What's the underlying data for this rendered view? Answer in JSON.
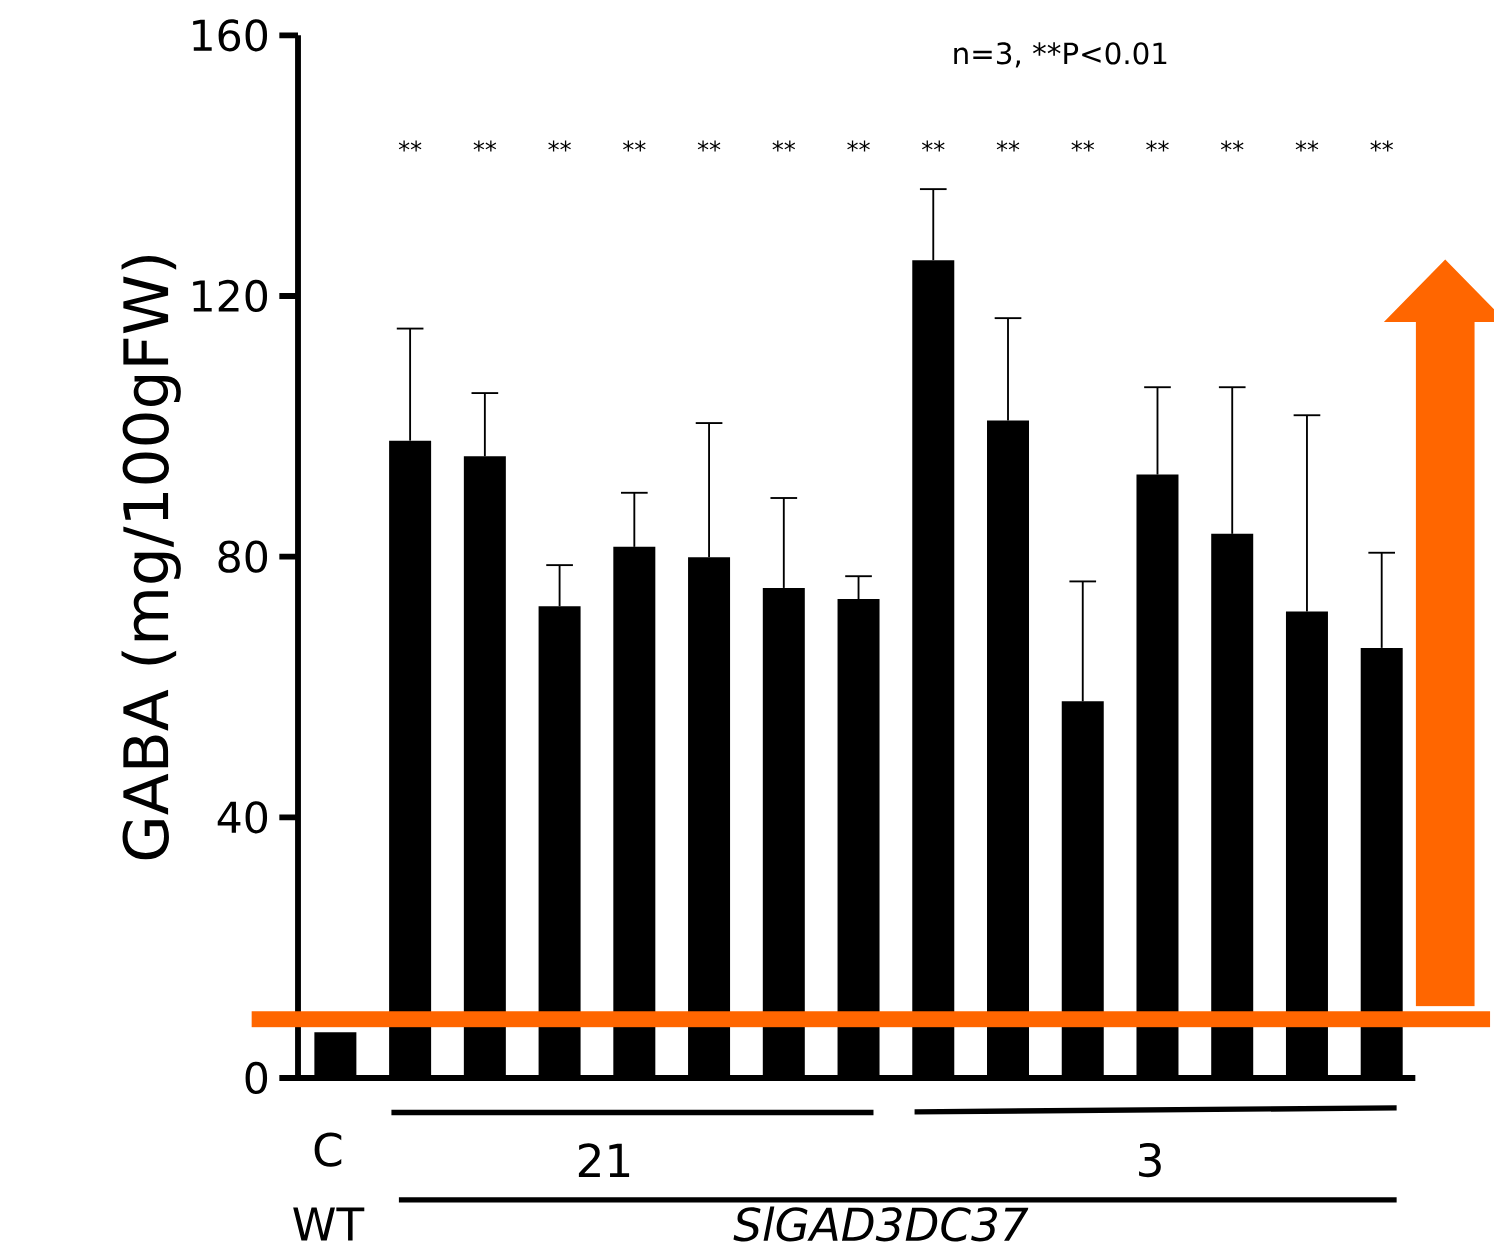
{
  "chart_data": {
    "type": "bar",
    "ylabel": "GABA (mg/100gFW)",
    "categories": [
      null,
      null,
      null,
      null,
      null,
      null,
      null,
      null,
      null,
      null,
      null,
      null,
      null,
      null,
      null
    ],
    "values": [
      7,
      97.8,
      95.4,
      72.4,
      81.5,
      79.9,
      75.2,
      73.5,
      125.5,
      100.9,
      57.8,
      92.6,
      83.5,
      71.6,
      66
    ],
    "errors": [
      null,
      [
        97.8,
        115
      ],
      [
        95.4,
        105.1
      ],
      [
        72.4,
        78.7
      ],
      [
        81.5,
        89.8
      ],
      [
        79.9,
        100.5
      ],
      [
        75.2,
        89
      ],
      [
        73.5,
        77
      ],
      [
        125.5,
        136.4
      ],
      [
        100.9,
        116.6
      ],
      [
        57.8,
        76.2
      ],
      [
        92.6,
        106
      ],
      [
        83.5,
        106
      ],
      [
        71.6,
        101.7
      ],
      [
        66,
        80.6
      ]
    ],
    "color": "#000000",
    "ylim": [
      0,
      160
    ],
    "yticks": [
      0,
      40,
      80,
      120,
      160
    ],
    "ref_lines": [
      {
        "axis": "y",
        "value": 9,
        "color": "#ff6600"
      }
    ],
    "annotations": [
      "n=3,  **P<0.01",
      "**",
      "**",
      "**",
      "**",
      "**",
      "**",
      "**",
      "**",
      "**",
      "**",
      "**",
      "**",
      "**",
      "**",
      "C",
      "WT",
      "21",
      "3",
      "SlGAD3DC37"
    ]
  }
}
